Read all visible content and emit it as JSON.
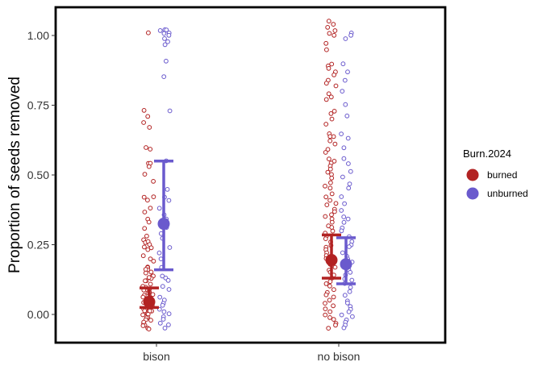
{
  "chart_data": {
    "type": "scatter",
    "title": "",
    "xlabel": "",
    "ylabel": "Proportion of seeds removed",
    "categories": [
      "bison",
      "no bison"
    ],
    "y_ticks": [
      "0.00",
      "0.25",
      "0.50",
      "0.75",
      "1.00"
    ],
    "ylim": [
      -0.06,
      1.06
    ],
    "grid": false,
    "legend": {
      "title": "Burn.2024",
      "position": "right",
      "entries": [
        "burned",
        "unburned"
      ]
    },
    "colors": {
      "burned": "#b22222",
      "unburned": "#6a5acd"
    },
    "summary": [
      {
        "category": "bison",
        "group": "burned",
        "mean": 0.045,
        "lower": 0.025,
        "upper": 0.095
      },
      {
        "category": "bison",
        "group": "unburned",
        "mean": 0.325,
        "lower": 0.16,
        "upper": 0.55
      },
      {
        "category": "no bison",
        "group": "burned",
        "mean": 0.195,
        "lower": 0.13,
        "upper": 0.285
      },
      {
        "category": "no bison",
        "group": "unburned",
        "mean": 0.18,
        "lower": 0.11,
        "upper": 0.275
      }
    ],
    "raw_points": [
      {
        "category": "bison",
        "group": "burned",
        "y": [
          1.01,
          0.73,
          0.71,
          0.69,
          0.67,
          0.6,
          0.59,
          0.54,
          0.54,
          0.53,
          0.5,
          0.48,
          0.42,
          0.42,
          0.41,
          0.38,
          0.37,
          0.34,
          0.33,
          0.31,
          0.28,
          0.27,
          0.26,
          0.26,
          0.25,
          0.24,
          0.24,
          0.23,
          0.21,
          0.2,
          0.19,
          0.17,
          0.17,
          0.16,
          0.16,
          0.15,
          0.15,
          0.14,
          0.14,
          0.13,
          0.13,
          0.12,
          0.12,
          0.11,
          0.1,
          0.1,
          0.09,
          0.09,
          0.08,
          0.08,
          0.07,
          0.07,
          0.06,
          0.06,
          0.05,
          0.05,
          0.04,
          0.04,
          0.03,
          0.03,
          0.03,
          0.02,
          0.02,
          0.02,
          0.01,
          0.01,
          0.01,
          0.0,
          0.0,
          0.0,
          -0.01,
          -0.01,
          -0.02,
          -0.02,
          -0.03,
          -0.03,
          -0.04,
          -0.04,
          -0.05,
          -0.05
        ]
      },
      {
        "category": "bison",
        "group": "unburned",
        "y": [
          1.02,
          1.02,
          1.02,
          1.01,
          1.01,
          1.0,
          0.99,
          0.98,
          0.97,
          0.91,
          0.85,
          0.73,
          0.55,
          0.45,
          0.42,
          0.41,
          0.38,
          0.36,
          0.34,
          0.31,
          0.29,
          0.27,
          0.24,
          0.22,
          0.2,
          0.17,
          0.14,
          0.13,
          0.12,
          0.1,
          0.09,
          0.06,
          0.05,
          0.04,
          0.03,
          0.02,
          0.01,
          0.0,
          -0.01,
          -0.02,
          -0.03,
          -0.04,
          -0.05
        ]
      },
      {
        "category": "no bison",
        "group": "burned",
        "y": [
          1.05,
          1.04,
          1.03,
          1.02,
          1.01,
          1.0,
          0.97,
          0.95,
          0.9,
          0.89,
          0.88,
          0.87,
          0.86,
          0.84,
          0.83,
          0.82,
          0.79,
          0.78,
          0.77,
          0.73,
          0.72,
          0.7,
          0.68,
          0.65,
          0.64,
          0.64,
          0.62,
          0.61,
          0.59,
          0.58,
          0.56,
          0.55,
          0.54,
          0.53,
          0.52,
          0.51,
          0.5,
          0.49,
          0.47,
          0.46,
          0.45,
          0.43,
          0.42,
          0.41,
          0.4,
          0.39,
          0.38,
          0.37,
          0.36,
          0.35,
          0.34,
          0.33,
          0.32,
          0.31,
          0.3,
          0.29,
          0.28,
          0.27,
          0.26,
          0.25,
          0.24,
          0.23,
          0.22,
          0.21,
          0.2,
          0.19,
          0.18,
          0.17,
          0.16,
          0.15,
          0.14,
          0.13,
          0.12,
          0.11,
          0.1,
          0.09,
          0.08,
          0.07,
          0.06,
          0.05,
          0.04,
          0.03,
          0.02,
          0.01,
          0.0,
          -0.01,
          -0.02,
          -0.03,
          -0.04,
          -0.05
        ]
      },
      {
        "category": "no bison",
        "group": "unburned",
        "y": [
          1.01,
          1.0,
          0.99,
          0.9,
          0.87,
          0.84,
          0.8,
          0.75,
          0.71,
          0.65,
          0.63,
          0.6,
          0.56,
          0.54,
          0.51,
          0.49,
          0.47,
          0.45,
          0.42,
          0.4,
          0.37,
          0.35,
          0.34,
          0.33,
          0.31,
          0.3,
          0.28,
          0.26,
          0.25,
          0.24,
          0.22,
          0.21,
          0.2,
          0.19,
          0.18,
          0.16,
          0.15,
          0.14,
          0.13,
          0.12,
          0.11,
          0.1,
          0.08,
          0.07,
          0.05,
          0.04,
          0.03,
          0.02,
          0.01,
          0.0,
          -0.01,
          -0.02,
          -0.03,
          -0.04,
          -0.05
        ]
      }
    ]
  }
}
